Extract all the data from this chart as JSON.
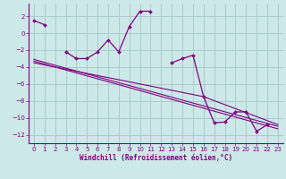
{
  "xlabel": "Windchill (Refroidissement éolien,°C)",
  "bg_color": "#cce8e8",
  "grid_color": "#aacccc",
  "line_color": "#800080",
  "x_data": [
    0,
    1,
    2,
    3,
    4,
    5,
    6,
    7,
    8,
    9,
    10,
    11,
    12,
    13,
    14,
    15,
    16,
    17,
    18,
    19,
    20,
    21,
    22,
    23
  ],
  "y_main": [
    1.5,
    1.0,
    null,
    -2.2,
    -3.0,
    -3.0,
    -2.2,
    -0.8,
    -2.2,
    0.8,
    2.6,
    2.6,
    null,
    -3.5,
    -3.0,
    -2.6,
    -7.5,
    -10.6,
    -10.5,
    -9.3,
    -9.3,
    -11.6,
    -10.8,
    null
  ],
  "trend1_x": [
    0,
    23
  ],
  "trend1_y": [
    -3.1,
    -11.0
  ],
  "trend2_x": [
    0,
    23
  ],
  "trend2_y": [
    -3.3,
    -11.3
  ],
  "trend3_x": [
    0,
    16,
    23
  ],
  "trend3_y": [
    -3.5,
    -7.5,
    -10.8
  ],
  "ylim": [
    -13,
    3.5
  ],
  "xlim": [
    -0.5,
    23.5
  ],
  "yticks": [
    2,
    0,
    -2,
    -4,
    -6,
    -8,
    -10,
    -12
  ],
  "xticks": [
    0,
    1,
    2,
    3,
    4,
    5,
    6,
    7,
    8,
    9,
    10,
    11,
    12,
    13,
    14,
    15,
    16,
    17,
    18,
    19,
    20,
    21,
    22,
    23
  ]
}
